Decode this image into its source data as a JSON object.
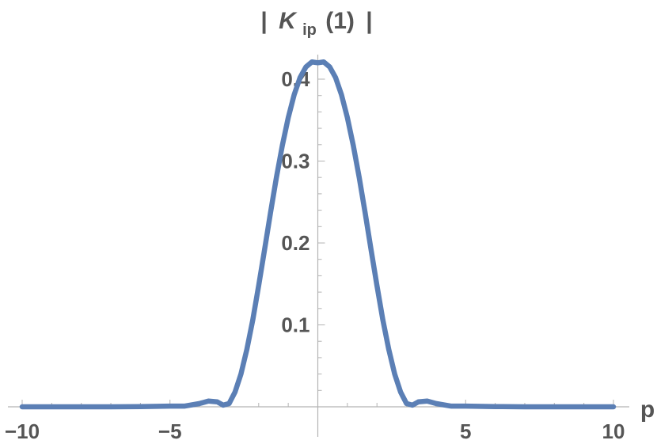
{
  "chart_data": {
    "type": "line",
    "title": "",
    "xlabel": "p",
    "ylabel_parts": {
      "open": "|",
      "symbol": "K",
      "subscript": "ip",
      "argument": "(1)",
      "close": "|"
    },
    "xlim": [
      -10,
      10
    ],
    "ylim": [
      0,
      0.43
    ],
    "x_ticks": [
      {
        "value": -10,
        "label": "−10"
      },
      {
        "value": -5,
        "label": "−5"
      },
      {
        "value": 5,
        "label": "5"
      },
      {
        "value": 10,
        "label": "10"
      }
    ],
    "y_ticks": [
      {
        "value": 0.1,
        "label": "0.1"
      },
      {
        "value": 0.2,
        "label": "0.2"
      },
      {
        "value": 0.3,
        "label": "0.3"
      },
      {
        "value": 0.4,
        "label": "0.4"
      }
    ],
    "series_color": "#5b7fb5",
    "series": [
      {
        "x": [
          -10,
          -9,
          -8,
          -7,
          -6,
          -5,
          -4.5,
          -4,
          -3.7,
          -3.4,
          -3.2,
          -3.0,
          -2.8,
          -2.6,
          -2.4,
          -2.2,
          -2.0,
          -1.8,
          -1.6,
          -1.4,
          -1.2,
          -1.0,
          -0.8,
          -0.6,
          -0.4,
          -0.2,
          0,
          0.2,
          0.4,
          0.6,
          0.8,
          1.0,
          1.2,
          1.4,
          1.6,
          1.8,
          2.0,
          2.2,
          2.4,
          2.6,
          2.8,
          3.0,
          3.2,
          3.4,
          3.7,
          4.0,
          4.5,
          5,
          6,
          7,
          8,
          9,
          10
        ],
        "y": [
          0,
          0,
          0,
          0,
          0.0003,
          0.0009,
          0.0009,
          0.004,
          0.007,
          0.006,
          0.002,
          0.004,
          0.018,
          0.04,
          0.07,
          0.106,
          0.148,
          0.192,
          0.237,
          0.28,
          0.319,
          0.353,
          0.381,
          0.402,
          0.415,
          0.421,
          0.42,
          0.421,
          0.415,
          0.402,
          0.381,
          0.353,
          0.319,
          0.28,
          0.237,
          0.192,
          0.148,
          0.106,
          0.07,
          0.04,
          0.018,
          0.004,
          0.002,
          0.006,
          0.007,
          0.004,
          0.0009,
          0.0009,
          0.0003,
          0,
          0,
          0,
          0
        ]
      }
    ]
  }
}
